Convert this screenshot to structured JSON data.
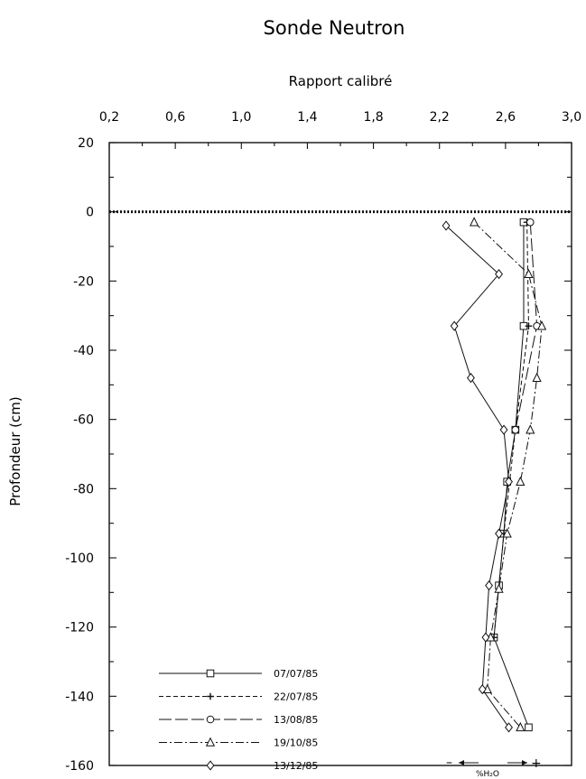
{
  "chart_data": {
    "type": "line",
    "title": "Sonde Neutron",
    "xlabel": "Rapport calibré",
    "ylabel": "Profondeur (cm)",
    "xlim": [
      0.2,
      3.0
    ],
    "ylim": [
      -160,
      20
    ],
    "x_ticks": [
      "0,2",
      "0,6",
      "1,0",
      "1,4",
      "1,8",
      "2,2",
      "2,6",
      "3,0"
    ],
    "y_ticks": [
      "20",
      "0",
      "-20",
      "-40",
      "-60",
      "-80",
      "-100",
      "-120",
      "-140",
      "-160"
    ],
    "grid": false,
    "surface_line_y": 0,
    "legend_position": "bottom-left",
    "annotation": {
      "left_arrow": "–",
      "right_arrow": "+",
      "label": "%H₂O"
    },
    "series": [
      {
        "name": "07/07/85",
        "marker": "square",
        "dash": "solid",
        "depth": [
          -3,
          -33,
          -63,
          -78,
          -93,
          -108,
          -123,
          -149
        ],
        "values": [
          2.71,
          2.71,
          2.66,
          2.61,
          2.59,
          2.56,
          2.53,
          2.74
        ]
      },
      {
        "name": "22/07/85",
        "marker": "plus",
        "dash": "dashed",
        "depth": [
          -3,
          -33,
          -63,
          -93,
          -123
        ],
        "values": [
          2.73,
          2.74,
          2.66,
          2.59,
          2.53
        ]
      },
      {
        "name": "13/08/85",
        "marker": "circle",
        "dash": "longdash",
        "depth": [
          -3,
          -33,
          -63
        ],
        "values": [
          2.75,
          2.79,
          2.66
        ]
      },
      {
        "name": "19/10/85",
        "marker": "triangle",
        "dash": "dashdot",
        "depth": [
          -3,
          -18,
          -33,
          -48,
          -63,
          -78,
          -93,
          -109,
          -123,
          -138,
          -149
        ],
        "values": [
          2.41,
          2.74,
          2.82,
          2.79,
          2.75,
          2.69,
          2.61,
          2.56,
          2.51,
          2.49,
          2.69
        ]
      },
      {
        "name": "13/12/85",
        "marker": "diamond",
        "dash": "solid",
        "depth": [
          -4,
          -18,
          -33,
          -48,
          -63,
          -78,
          -93,
          -108,
          -123,
          -138,
          -149
        ],
        "values": [
          2.24,
          2.56,
          2.29,
          2.39,
          2.59,
          2.62,
          2.56,
          2.5,
          2.48,
          2.46,
          2.62
        ]
      }
    ]
  }
}
